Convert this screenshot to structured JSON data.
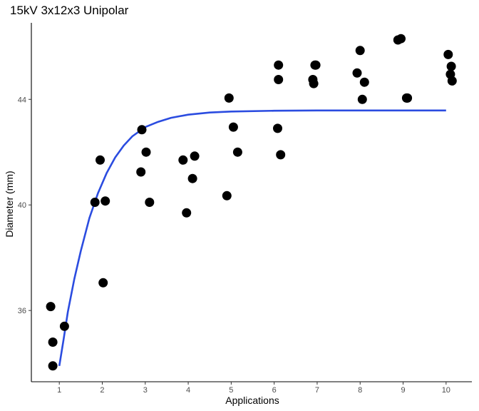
{
  "chart_data": {
    "type": "scatter",
    "title": "15kV 3x12x3 Unipolar",
    "xlabel": "Applications",
    "ylabel": "Diameter (mm)",
    "xlim": [
      0.35,
      10.6
    ],
    "ylim": [
      33.3,
      46.9
    ],
    "x_ticks": [
      1,
      2,
      3,
      4,
      5,
      6,
      7,
      8,
      9,
      10
    ],
    "y_ticks": [
      36,
      40,
      44
    ],
    "grid": false,
    "legend": "none",
    "colors": {
      "points": "#000000",
      "fit": "#2b4ce0"
    },
    "points": [
      {
        "x": 0.8,
        "y": 36.15
      },
      {
        "x": 0.85,
        "y": 34.8
      },
      {
        "x": 0.85,
        "y": 33.9
      },
      {
        "x": 1.12,
        "y": 35.4
      },
      {
        "x": 1.83,
        "y": 40.1
      },
      {
        "x": 1.95,
        "y": 41.7
      },
      {
        "x": 2.02,
        "y": 37.05
      },
      {
        "x": 2.07,
        "y": 40.15
      },
      {
        "x": 2.9,
        "y": 41.25
      },
      {
        "x": 2.92,
        "y": 42.85
      },
      {
        "x": 3.02,
        "y": 42.0
      },
      {
        "x": 3.1,
        "y": 40.1
      },
      {
        "x": 3.88,
        "y": 41.7
      },
      {
        "x": 3.96,
        "y": 39.7
      },
      {
        "x": 4.1,
        "y": 41.0
      },
      {
        "x": 4.15,
        "y": 41.85
      },
      {
        "x": 4.9,
        "y": 40.35
      },
      {
        "x": 4.95,
        "y": 44.05
      },
      {
        "x": 5.05,
        "y": 42.95
      },
      {
        "x": 5.15,
        "y": 42.0
      },
      {
        "x": 6.08,
        "y": 42.9
      },
      {
        "x": 6.1,
        "y": 45.3
      },
      {
        "x": 6.1,
        "y": 44.75
      },
      {
        "x": 6.15,
        "y": 41.9
      },
      {
        "x": 6.9,
        "y": 44.75
      },
      {
        "x": 6.92,
        "y": 44.6
      },
      {
        "x": 6.95,
        "y": 45.3
      },
      {
        "x": 6.97,
        "y": 45.3
      },
      {
        "x": 7.93,
        "y": 45.0
      },
      {
        "x": 8.0,
        "y": 45.85
      },
      {
        "x": 8.05,
        "y": 44.0
      },
      {
        "x": 8.1,
        "y": 44.65
      },
      {
        "x": 8.88,
        "y": 46.25
      },
      {
        "x": 8.95,
        "y": 46.3
      },
      {
        "x": 9.08,
        "y": 44.05
      },
      {
        "x": 9.1,
        "y": 44.05
      },
      {
        "x": 10.05,
        "y": 45.7
      },
      {
        "x": 10.1,
        "y": 44.95
      },
      {
        "x": 10.12,
        "y": 45.25
      },
      {
        "x": 10.14,
        "y": 44.7
      }
    ],
    "fit_line": [
      {
        "x": 1.0,
        "y": 33.9
      },
      {
        "x": 1.1,
        "y": 34.9
      },
      {
        "x": 1.2,
        "y": 35.95
      },
      {
        "x": 1.35,
        "y": 37.2
      },
      {
        "x": 1.5,
        "y": 38.25
      },
      {
        "x": 1.7,
        "y": 39.5
      },
      {
        "x": 1.9,
        "y": 40.45
      },
      {
        "x": 2.1,
        "y": 41.2
      },
      {
        "x": 2.3,
        "y": 41.8
      },
      {
        "x": 2.5,
        "y": 42.25
      },
      {
        "x": 2.7,
        "y": 42.6
      },
      {
        "x": 3.0,
        "y": 42.95
      },
      {
        "x": 3.3,
        "y": 43.15
      },
      {
        "x": 3.6,
        "y": 43.3
      },
      {
        "x": 4.0,
        "y": 43.42
      },
      {
        "x": 4.5,
        "y": 43.5
      },
      {
        "x": 5.0,
        "y": 43.54
      },
      {
        "x": 6.0,
        "y": 43.57
      },
      {
        "x": 7.0,
        "y": 43.58
      },
      {
        "x": 8.0,
        "y": 43.58
      },
      {
        "x": 9.0,
        "y": 43.58
      },
      {
        "x": 10.0,
        "y": 43.58
      }
    ]
  }
}
